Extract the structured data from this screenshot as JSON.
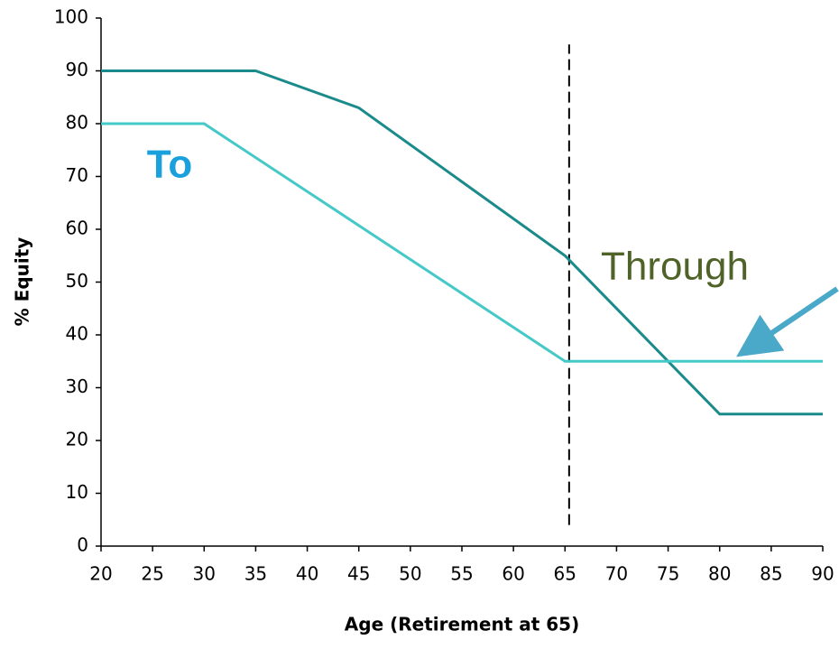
{
  "chart_data": {
    "type": "line",
    "xlabel": "Age (Retirement at 65)",
    "ylabel": "% Equity",
    "xlim": [
      20,
      90
    ],
    "xticks": [
      20,
      25,
      30,
      35,
      40,
      45,
      50,
      55,
      60,
      65,
      70,
      75,
      80,
      85,
      90
    ],
    "ylim": [
      0,
      100
    ],
    "yticks": [
      0,
      10,
      20,
      30,
      40,
      50,
      60,
      70,
      80,
      90,
      100
    ],
    "grid": false,
    "series": [
      {
        "name": "Through",
        "color": "#1a8a8a",
        "label_color": "#4f6228",
        "x": [
          20,
          35,
          45,
          65,
          80,
          90
        ],
        "values": [
          90,
          90,
          83,
          55,
          25,
          25
        ]
      },
      {
        "name": "To",
        "color": "#44c8c8",
        "label_color": "#1aa0dc",
        "x": [
          20,
          30,
          65,
          90
        ],
        "values": [
          80,
          80,
          35,
          35
        ]
      }
    ],
    "reference_line": {
      "x": 65.4,
      "y": [
        4,
        95
      ]
    }
  }
}
